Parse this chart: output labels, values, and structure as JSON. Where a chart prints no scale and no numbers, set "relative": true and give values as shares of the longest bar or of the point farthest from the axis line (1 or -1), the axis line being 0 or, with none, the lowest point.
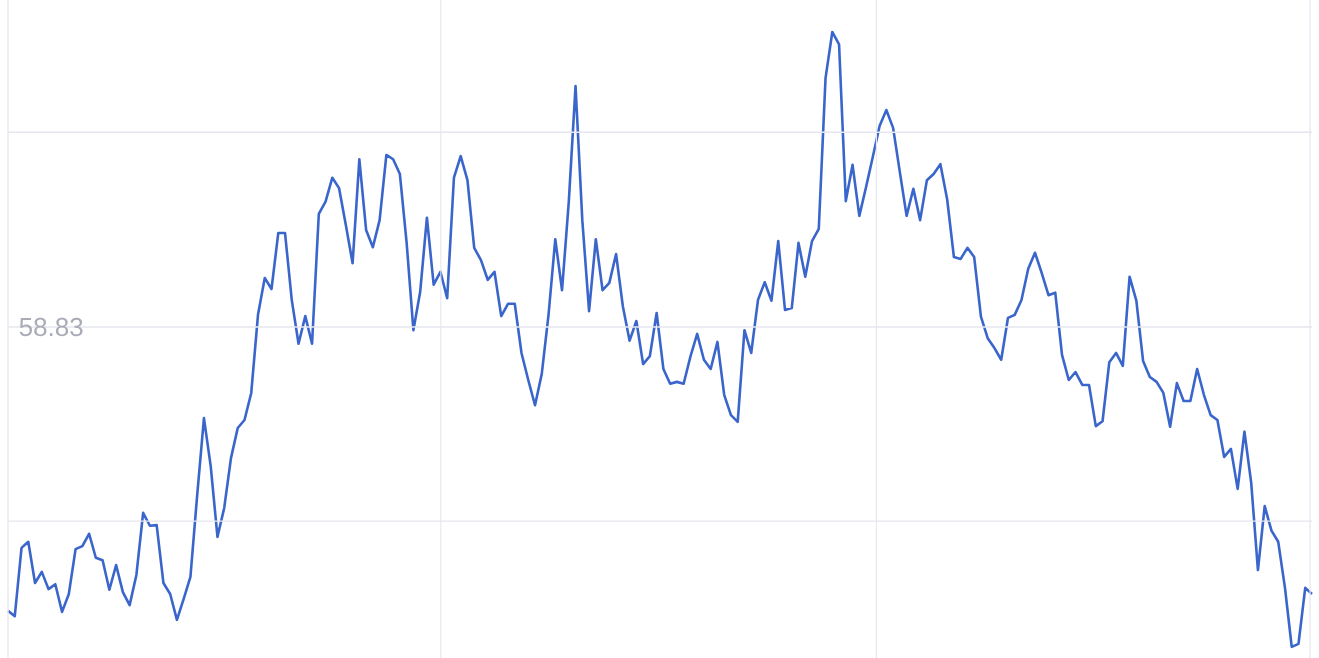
{
  "chart_data": {
    "type": "line",
    "relative": true,
    "color": "#3a66cc",
    "grid": true,
    "marker": "none",
    "line_style": "solid",
    "categories": [
      null,
      null,
      null,
      null,
      null,
      null,
      null,
      null,
      null,
      null,
      null,
      null,
      null,
      null,
      null,
      null,
      null,
      null,
      null,
      null,
      null,
      null,
      null,
      null,
      null,
      null,
      null,
      null,
      null,
      null,
      null,
      null,
      null,
      null,
      null,
      null,
      null,
      null,
      null,
      null,
      null,
      null,
      null,
      null,
      null,
      null,
      null,
      null,
      null,
      null,
      null,
      null,
      null,
      null,
      null,
      null,
      null,
      null,
      null,
      null,
      null,
      null,
      null,
      null,
      null,
      null,
      null,
      null,
      null,
      null,
      null,
      null,
      null,
      null,
      null,
      null,
      null,
      null,
      null,
      null,
      null,
      null,
      null,
      null,
      null,
      null,
      null,
      null,
      null,
      null,
      null,
      null,
      null,
      null,
      null,
      null,
      null,
      null,
      null,
      null,
      null,
      null,
      null,
      null,
      null,
      null,
      null,
      null,
      null,
      null,
      null,
      null,
      null,
      null,
      null,
      null,
      null,
      null,
      null,
      null,
      null,
      null,
      null,
      null,
      null,
      null,
      null,
      null,
      null,
      null,
      null,
      null,
      null,
      null,
      null,
      null,
      null,
      null,
      null,
      null,
      null,
      null,
      null,
      null,
      null,
      null,
      null,
      null,
      null,
      null,
      null,
      null,
      null,
      null,
      null,
      null,
      null,
      null,
      null,
      null,
      null,
      null,
      null,
      null,
      null,
      null,
      null,
      null,
      null,
      null,
      null,
      null,
      null,
      null,
      null,
      null,
      null,
      null,
      null,
      null,
      null,
      null,
      null,
      null,
      null,
      null,
      null,
      null,
      null,
      null,
      null,
      null,
      null,
      null
    ],
    "annotations": [
      "58.83"
    ],
    "values": [
      0.059,
      0.05,
      0.161,
      0.171,
      0.104,
      0.122,
      0.094,
      0.102,
      0.057,
      0.086,
      0.159,
      0.164,
      0.184,
      0.145,
      0.141,
      0.093,
      0.133,
      0.089,
      0.068,
      0.117,
      0.218,
      0.197,
      0.198,
      0.104,
      0.086,
      0.044,
      0.078,
      0.114,
      0.247,
      0.372,
      0.294,
      0.179,
      0.226,
      0.307,
      0.356,
      0.369,
      0.413,
      0.54,
      0.6,
      0.582,
      0.673,
      0.673,
      0.564,
      0.493,
      0.538,
      0.493,
      0.704,
      0.724,
      0.763,
      0.746,
      0.686,
      0.624,
      0.793,
      0.678,
      0.65,
      0.694,
      0.8,
      0.793,
      0.769,
      0.657,
      0.515,
      0.577,
      0.698,
      0.589,
      0.61,
      0.567,
      0.763,
      0.798,
      0.759,
      0.649,
      0.629,
      0.597,
      0.61,
      0.538,
      0.558,
      0.558,
      0.478,
      0.434,
      0.393,
      0.444,
      0.54,
      0.663,
      0.58,
      0.724,
      0.912,
      0.694,
      0.546,
      0.663,
      0.58,
      0.592,
      0.639,
      0.554,
      0.498,
      0.53,
      0.46,
      0.473,
      0.543,
      0.452,
      0.428,
      0.431,
      0.428,
      0.472,
      0.509,
      0.467,
      0.452,
      0.496,
      0.41,
      0.377,
      0.366,
      0.515,
      0.478,
      0.564,
      0.593,
      0.563,
      0.66,
      0.548,
      0.551,
      0.657,
      0.602,
      0.66,
      0.68,
      0.925,
      1.0,
      0.98,
      0.725,
      0.784,
      0.701,
      0.748,
      0.797,
      0.847,
      0.873,
      0.844,
      0.772,
      0.701,
      0.745,
      0.694,
      0.759,
      0.769,
      0.785,
      0.728,
      0.634,
      0.631,
      0.649,
      0.634,
      0.537,
      0.502,
      0.486,
      0.467,
      0.535,
      0.54,
      0.564,
      0.615,
      0.641,
      0.608,
      0.572,
      0.576,
      0.475,
      0.434,
      0.447,
      0.426,
      0.426,
      0.359,
      0.367,
      0.463,
      0.478,
      0.457,
      0.602,
      0.563,
      0.465,
      0.439,
      0.431,
      0.413,
      0.358,
      0.429,
      0.4,
      0.4,
      0.452,
      0.41,
      0.377,
      0.369,
      0.309,
      0.322,
      0.257,
      0.35,
      0.267,
      0.125,
      0.229,
      0.189,
      0.171,
      0.096,
      0,
      0.005,
      0.096,
      0.086
    ]
  }
}
